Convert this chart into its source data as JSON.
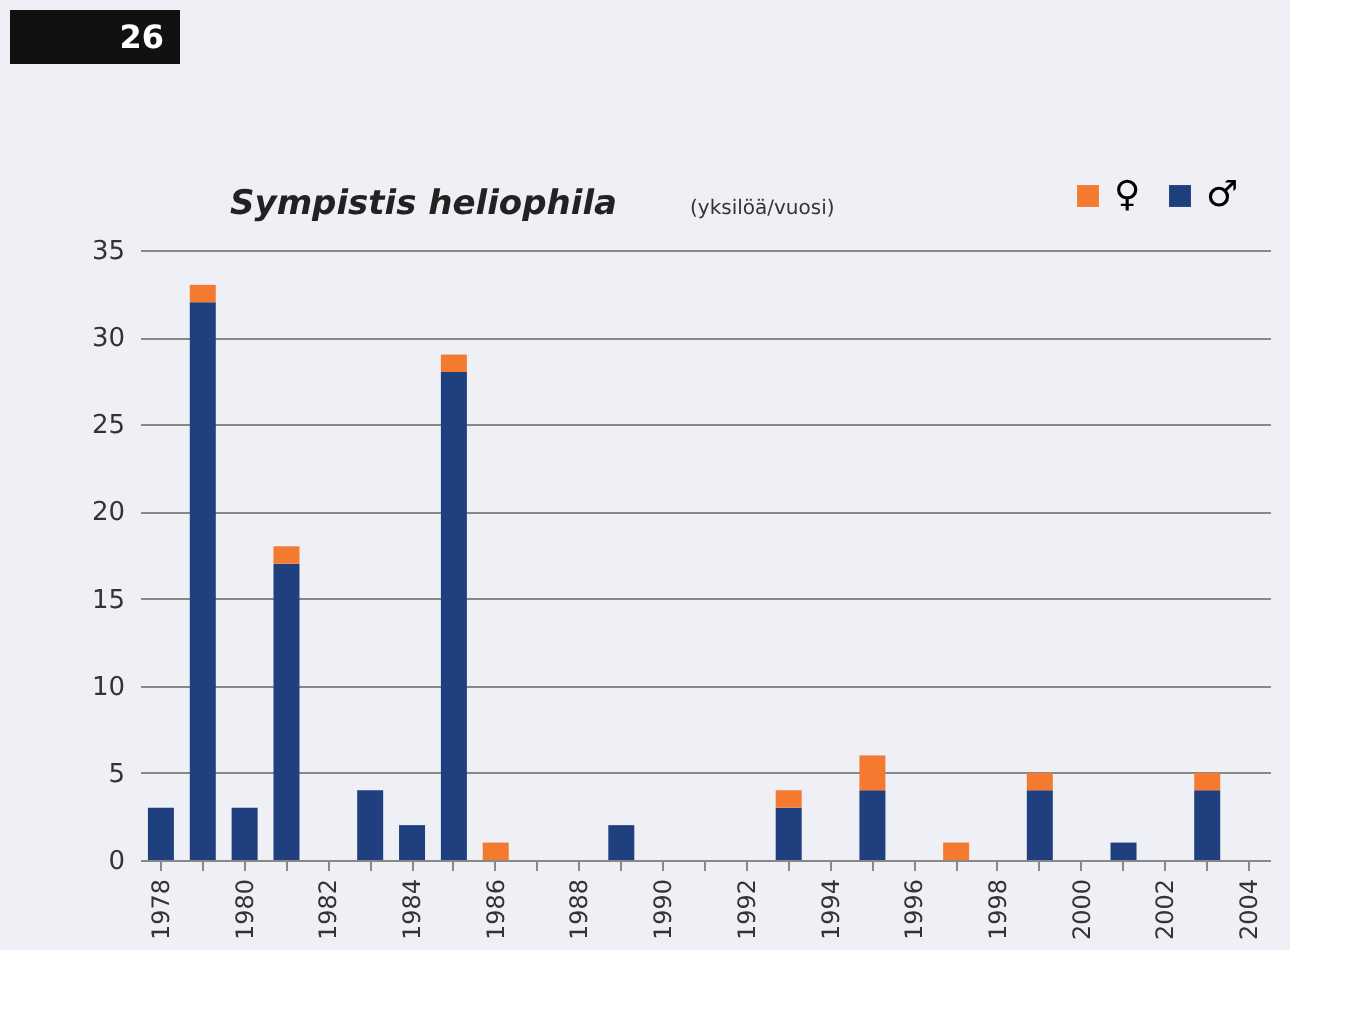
{
  "chart_data": {
    "type": "bar",
    "stacked": true,
    "title": "Sympistis heliophila",
    "subtitle": "(yksilöä/vuosi)",
    "annotations": [
      "26"
    ],
    "categories": [
      "1978",
      null,
      "1980",
      null,
      "1982",
      null,
      "1984",
      null,
      "1986",
      null,
      "1988",
      null,
      "1990",
      null,
      "1992",
      null,
      "1994",
      null,
      "1996",
      null,
      "1998",
      null,
      "2000",
      null,
      "2002",
      null,
      "2004"
    ],
    "series": [
      {
        "name": "♂",
        "color": "#1f3f7f",
        "values": [
          3,
          32,
          3,
          17,
          null,
          4,
          2,
          28,
          null,
          null,
          null,
          2,
          null,
          null,
          null,
          3,
          null,
          4,
          null,
          null,
          null,
          4,
          null,
          1,
          null,
          4,
          null
        ]
      },
      {
        "name": "♀",
        "color": "#f47a30",
        "values": [
          null,
          1,
          null,
          1,
          null,
          null,
          null,
          1,
          1,
          null,
          null,
          null,
          null,
          null,
          null,
          1,
          null,
          2,
          null,
          1,
          null,
          1,
          null,
          null,
          null,
          1,
          null
        ]
      }
    ],
    "ylim": [
      0,
      35
    ],
    "yticks": [
      0,
      5,
      10,
      15,
      20,
      25,
      30,
      35
    ],
    "grid": "y",
    "legend": "top right"
  }
}
